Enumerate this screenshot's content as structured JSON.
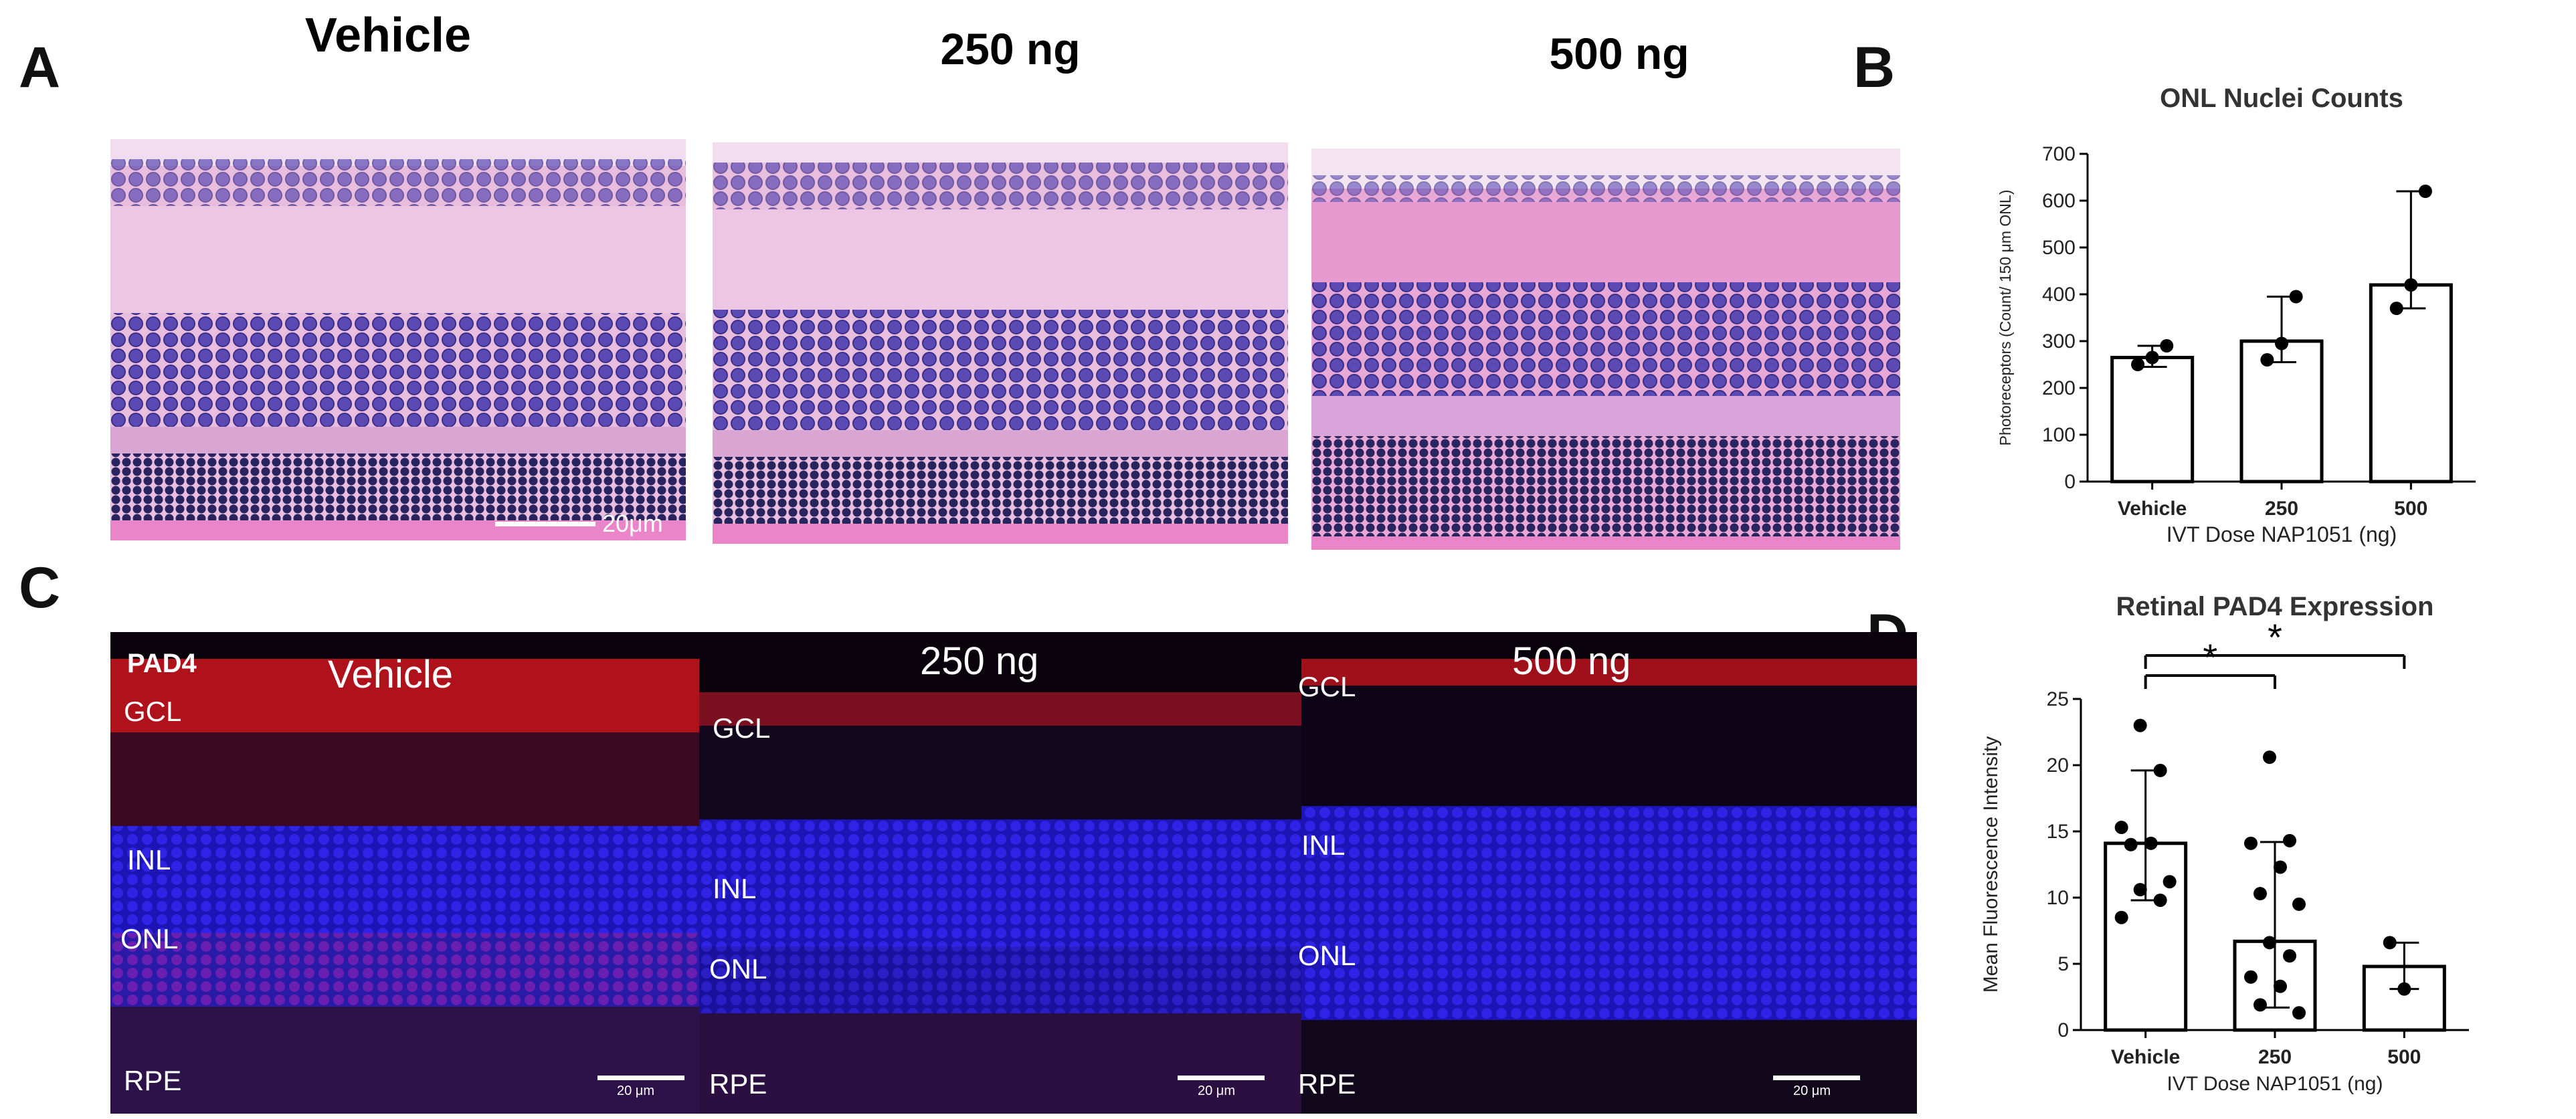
{
  "panel_letters": {
    "a": "A",
    "b": "B",
    "c": "C",
    "d": "D"
  },
  "panel_a": {
    "columns": [
      "Vehicle",
      "250 ng",
      "500 ng"
    ],
    "scale_label": "20μm"
  },
  "panel_c": {
    "marker": "PAD4",
    "columns": [
      "Vehicle",
      "250 ng",
      "500 ng"
    ],
    "layers": {
      "gcl": "GCL",
      "inl": "INL",
      "onl": "ONL",
      "rpe": "RPE"
    },
    "scale_label": "20 μm"
  },
  "chart_data": [
    {
      "type": "bar",
      "title": "ONL Nuclei Counts",
      "xlabel": "IVT Dose NAP1051 (ng)",
      "ylabel": "Photoreceptors (Count/ 150 μm ONL)",
      "categories": [
        "Vehicle",
        "250",
        "500"
      ],
      "values": [
        265,
        300,
        420
      ],
      "error_low": [
        245,
        255,
        370
      ],
      "error_high": [
        290,
        395,
        620
      ],
      "points": [
        [
          250,
          265,
          290
        ],
        [
          260,
          295,
          395
        ],
        [
          370,
          420,
          620
        ]
      ],
      "ylim": [
        0,
        700
      ],
      "yticks": [
        0,
        100,
        200,
        300,
        400,
        500,
        600,
        700
      ],
      "bar_color": "#ffffff",
      "edge_color": "#000000"
    },
    {
      "type": "bar",
      "title": "Retinal PAD4 Expression",
      "xlabel": "IVT Dose NAP1051 (ng)",
      "ylabel": "Mean Fluorescence Intensity",
      "categories": [
        "Vehicle",
        "250",
        "500"
      ],
      "values": [
        14.1,
        6.7,
        4.8
      ],
      "error_low": [
        9.8,
        1.7,
        3.1
      ],
      "error_high": [
        19.6,
        14.2,
        6.6
      ],
      "points": [
        [
          23.0,
          19.6,
          15.3,
          14.1,
          14.0,
          11.2,
          10.6,
          9.8,
          8.5
        ],
        [
          20.6,
          14.3,
          14.1,
          12.3,
          10.3,
          9.5,
          6.6,
          5.6,
          4.0,
          3.3,
          1.9,
          1.3
        ],
        [
          6.6,
          3.1
        ]
      ],
      "ylim": [
        0,
        25
      ],
      "yticks": [
        0,
        5,
        10,
        15,
        20,
        25
      ],
      "significance": [
        {
          "from": "Vehicle",
          "to": "250",
          "label": "*"
        },
        {
          "from": "Vehicle",
          "to": "500",
          "label": "*"
        }
      ],
      "bar_color": "#ffffff",
      "edge_color": "#000000"
    }
  ],
  "colors": {
    "he_background": "#e7b4d6",
    "he_nuclei": "#4a3f9e",
    "he_onl": "#2b2a6b",
    "fluor_background": "#0a0310",
    "fluor_dapi": "#2a1fd8",
    "fluor_pad4": "#e0131a"
  }
}
